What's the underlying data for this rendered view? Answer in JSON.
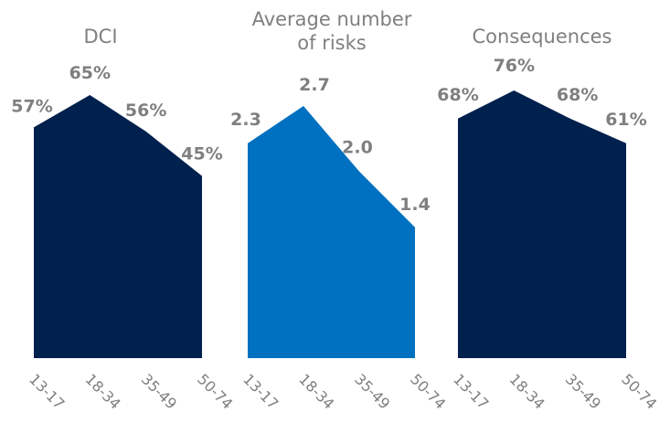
{
  "chart_data": [
    {
      "type": "area",
      "title": "DCI",
      "categories": [
        "13-17",
        "18-34",
        "35-49",
        "50-74"
      ],
      "values": [
        57,
        65,
        56,
        45
      ],
      "labels": [
        "57%",
        "65%",
        "56%",
        "45%"
      ],
      "unit": "%",
      "ylim": [
        0,
        100
      ],
      "color": "#00204e",
      "grid": false
    },
    {
      "type": "area",
      "title": "Average number of risks",
      "title_lines": [
        "Average number",
        "of risks"
      ],
      "categories": [
        "13-17",
        "18-34",
        "35-49",
        "50-74"
      ],
      "values": [
        2.3,
        2.7,
        2.0,
        1.4
      ],
      "labels": [
        "2.3",
        "2.7",
        "2.0",
        "1.4"
      ],
      "ylim": [
        0,
        4
      ],
      "color": "#0070c0",
      "grid": false
    },
    {
      "type": "area",
      "title": "Consequences",
      "categories": [
        "13-17",
        "18-34",
        "35-49",
        "50-74"
      ],
      "values": [
        68,
        76,
        68,
        61
      ],
      "labels": [
        "68%",
        "76%",
        "68%",
        "61%"
      ],
      "unit": "%",
      "ylim": [
        0,
        100
      ],
      "color": "#00204e",
      "grid": false
    }
  ]
}
